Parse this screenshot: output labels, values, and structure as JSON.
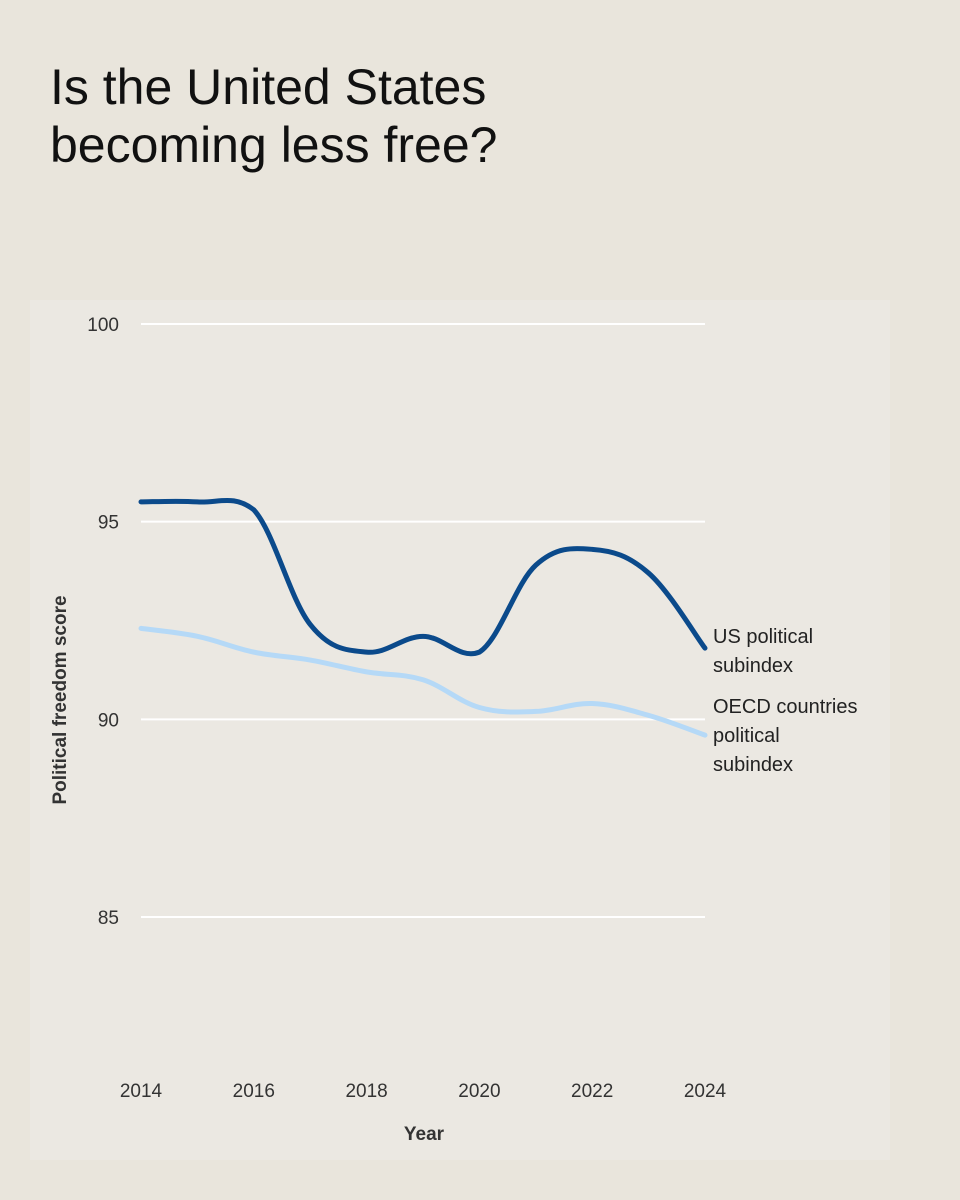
{
  "title_lines": [
    "Is the United States",
    "becoming less free?"
  ],
  "chart_data": {
    "type": "line",
    "title": "Is the United States becoming less free?",
    "xlabel": "Year",
    "ylabel": "Political freedom score",
    "xlim": [
      2014,
      2024
    ],
    "ylim": [
      81,
      100
    ],
    "x_ticks": [
      "2014",
      "2016",
      "2018",
      "2020",
      "2022",
      "2024"
    ],
    "y_ticks": [
      "85",
      "90",
      "95",
      "100"
    ],
    "grid": "horizontal",
    "x": [
      2014,
      2015,
      2016,
      2017,
      2018,
      2019,
      2020,
      2021,
      2022,
      2023,
      2024
    ],
    "series": [
      {
        "name": "US political subindex",
        "label_lines": [
          "US political",
          "subindex"
        ],
        "color": "#0b4a8b",
        "values": [
          95.5,
          95.5,
          95.3,
          92.4,
          91.7,
          92.1,
          91.7,
          93.9,
          94.3,
          93.7,
          91.8
        ]
      },
      {
        "name": "OECD countries political subindex",
        "label_lines": [
          "OECD countries",
          "political",
          "subindex"
        ],
        "color": "#b5d9f7",
        "values": [
          92.3,
          92.1,
          91.7,
          91.5,
          91.2,
          91.0,
          90.3,
          90.2,
          90.4,
          90.1,
          89.6
        ]
      }
    ]
  }
}
